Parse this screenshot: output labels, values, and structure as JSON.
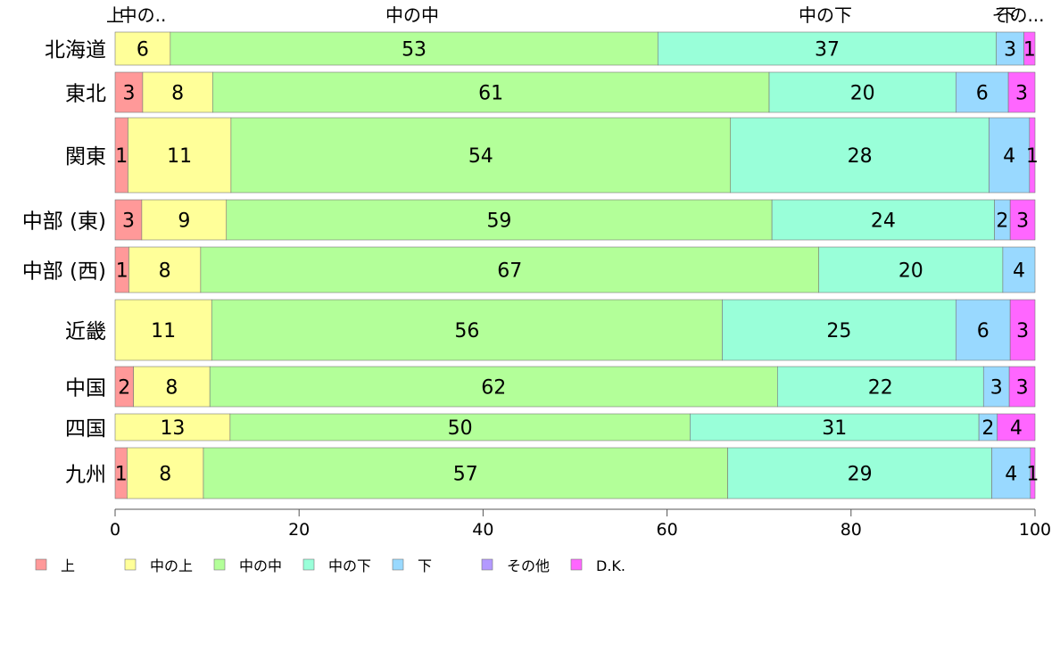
{
  "chart_data": {
    "type": "bar",
    "orientation": "horizontal",
    "stacked": true,
    "title": "",
    "xlabel": "",
    "ylabel": "",
    "xlim": [
      0,
      100
    ],
    "x_ticks": [
      0,
      20,
      40,
      60,
      80,
      100
    ],
    "grid": false,
    "legend_position": "bottom",
    "top_labels": [
      "上",
      "中の..",
      "中の中",
      "中の下",
      "下",
      "その..."
    ],
    "categories": [
      "北海道",
      "東北",
      "関東",
      "中部 (東)",
      "中部 (西)",
      "近畿",
      "中国",
      "四国",
      "九州"
    ],
    "series": [
      {
        "name": "上",
        "color": "#ff9999",
        "values": [
          0,
          3,
          1.4,
          2.9,
          1.5,
          0,
          2,
          0,
          1.3
        ],
        "labels": [
          "",
          "3",
          "1",
          "3",
          "1",
          "",
          "2",
          "",
          "1"
        ]
      },
      {
        "name": "中の上",
        "color": "#ffff99",
        "values": [
          6,
          7.6,
          11.2,
          9.2,
          7.8,
          10.5,
          8.3,
          12.5,
          8.3
        ],
        "labels": [
          "6",
          "8",
          "11",
          "9",
          "8",
          "11",
          "8",
          "13",
          "8"
        ]
      },
      {
        "name": "中の中",
        "color": "#b3ff99",
        "values": [
          53,
          60.5,
          54.3,
          59.3,
          67.2,
          55.5,
          61.7,
          50,
          57
        ],
        "labels": [
          "53",
          "61",
          "54",
          "59",
          "67",
          "56",
          "62",
          "50",
          "57"
        ]
      },
      {
        "name": "中の下",
        "color": "#99ffd9",
        "values": [
          36.8,
          20.3,
          28.1,
          24.2,
          20,
          25.4,
          22.4,
          31.4,
          28.7
        ],
        "labels": [
          "37",
          "20",
          "28",
          "24",
          "20",
          "25",
          "22",
          "31",
          "29"
        ]
      },
      {
        "name": "下",
        "color": "#99d9ff",
        "values": [
          3,
          5.7,
          4.4,
          1.7,
          3.5,
          5.9,
          2.8,
          2,
          4.2
        ],
        "labels": [
          "3",
          "6",
          "4",
          "2",
          "4",
          "6",
          "3",
          "2",
          "4"
        ]
      },
      {
        "name": "その他",
        "color": "#b399ff",
        "values": [
          0,
          0,
          0,
          0,
          0,
          0,
          0,
          0,
          0
        ],
        "labels": [
          "",
          "",
          "",
          "",
          "",
          "",
          "",
          "",
          ""
        ]
      },
      {
        "name": "D.K.",
        "color": "#ff66ff",
        "values": [
          1.2,
          2.9,
          0.6,
          2.7,
          0,
          2.7,
          2.8,
          4.1,
          0.5
        ],
        "labels": [
          "1",
          "3",
          "1",
          "3",
          "",
          "3",
          "3",
          "4",
          "1"
        ]
      }
    ]
  }
}
